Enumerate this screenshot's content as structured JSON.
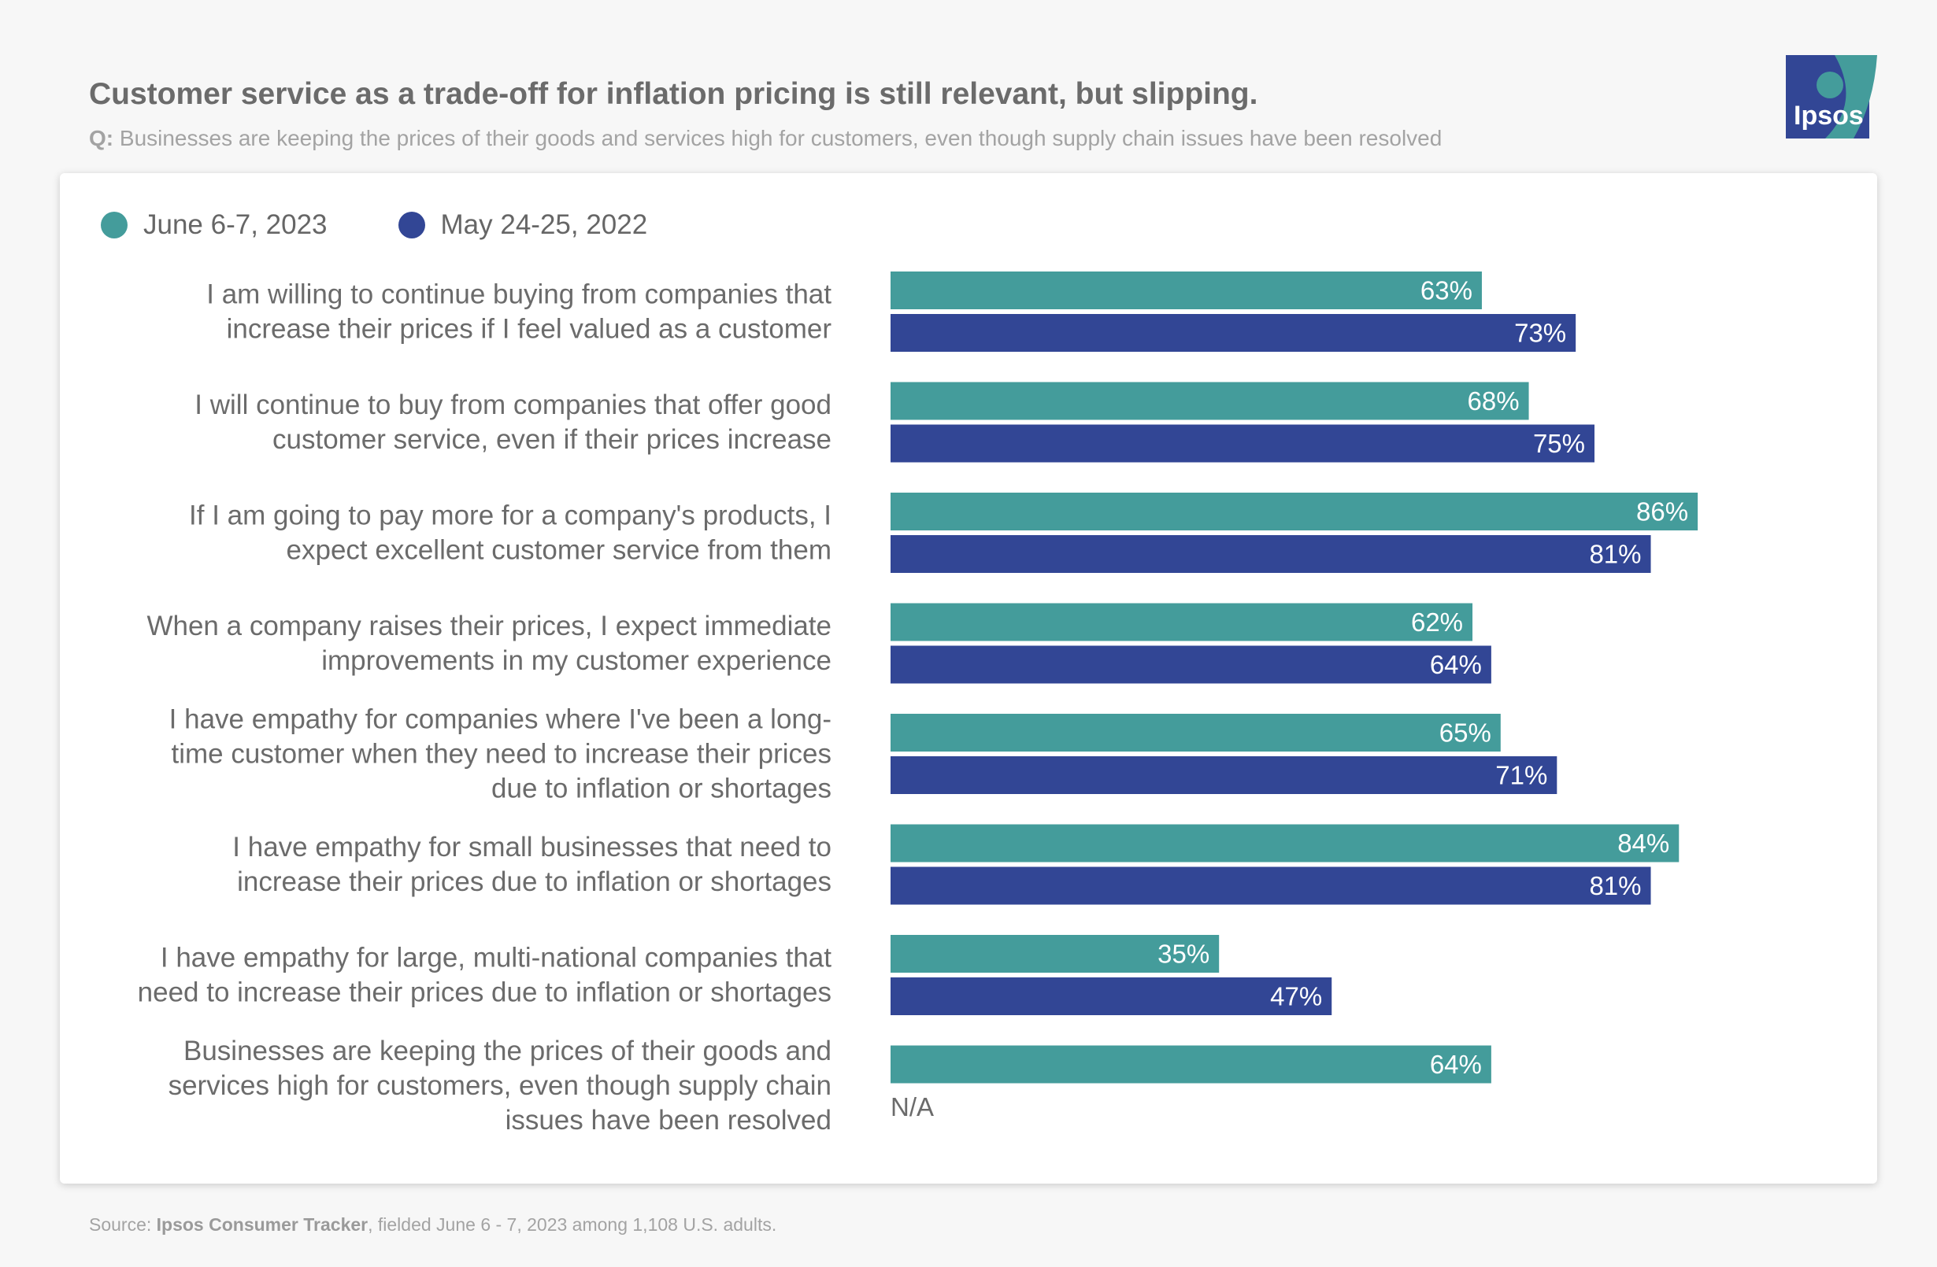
{
  "header": {
    "title": "Customer service as a trade-off for inflation pricing is still relevant, but slipping.",
    "question_prefix": "Q:",
    "question_text": " Businesses are keeping the prices of their goods and services high for customers, even though supply chain issues have been resolved"
  },
  "logo": {
    "text": "Ipsos",
    "icon": "ipsos-logo-icon"
  },
  "source": {
    "prefix": "Source: ",
    "name": "Ipsos Consumer Tracker",
    "suffix": ", fielded June 6 - 7, 2023 among 1,108 U.S. adults."
  },
  "colors": {
    "series_2023": "#449c9b",
    "series_2022": "#324695",
    "label_text": "#6b6b6b"
  },
  "chart_data": {
    "type": "bar",
    "orientation": "horizontal",
    "title": "Customer service as a trade-off for inflation pricing is still relevant, but slipping.",
    "xlim": [
      0,
      100
    ],
    "value_suffix": "%",
    "legend_position": "top-left",
    "na_label": "N/A",
    "categories": [
      [
        "I am willing to continue buying from companies that",
        "increase their prices if I feel valued as a customer"
      ],
      [
        "I will continue to buy from companies that offer good",
        "customer service, even if their prices increase"
      ],
      [
        "If I am going to pay more for a company's products, I",
        "expect excellent customer service from them"
      ],
      [
        "When a company raises their prices, I expect immediate",
        "improvements in my customer experience"
      ],
      [
        "I have empathy for companies where I've been a long-",
        "time customer when they need to increase their prices",
        "due to inflation or shortages"
      ],
      [
        "I have empathy for small businesses that need to",
        "increase their prices due to inflation or shortages"
      ],
      [
        "I have empathy for large, multi-national companies that",
        "need to increase their prices due to inflation or shortages"
      ],
      [
        "Businesses are keeping the prices of their goods and",
        "services high for customers, even though supply chain",
        "issues have been resolved"
      ]
    ],
    "series": [
      {
        "name": "June 6-7, 2023",
        "color": "#449c9b",
        "values": [
          63,
          68,
          86,
          62,
          65,
          84,
          35,
          64
        ]
      },
      {
        "name": "May 24-25, 2022",
        "color": "#324695",
        "values": [
          73,
          75,
          81,
          64,
          71,
          81,
          47,
          null
        ]
      }
    ]
  }
}
